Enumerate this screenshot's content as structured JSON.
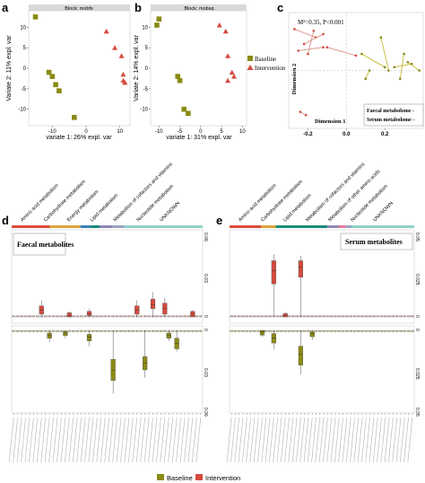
{
  "colors": {
    "baseline": "#8a8a14",
    "intervention": "#d64a3e",
    "mds_baseline_line": "#c7b93a",
    "mds_intervention_line": "#d88f82",
    "axis": "#555555",
    "band_amino": "#d94e3a",
    "band_carb": "#e0a23a",
    "band_energy": "#3d7fb5",
    "band_lipid": "#1b8c78",
    "band_cofactors": "#8b8ab8",
    "band_nucleotide": "#9aa4bd",
    "band_unknown": "#8fd2c9",
    "band_other_amino": "#e57aa0"
  },
  "panels": {
    "a": {
      "letter": "a",
      "block": "Block: mobfs",
      "xlabel": "variate 1: 26% expl. var",
      "ylabel": "Variate 2: 11% expl. var"
    },
    "b": {
      "letter": "b",
      "block": "Block: mobsq",
      "xlabel": "variate 1: 31% expl. var",
      "ylabel": "Variate 2: 14% expl. var"
    },
    "c": {
      "letter": "c",
      "stat": "M²=0.35, P<0.001",
      "xlabel": "Dimension 1",
      "ylabel": "Dimension 2",
      "legend_1": "Faecal metabolome -",
      "legend_2": "Serum metabolome -"
    },
    "d": {
      "letter": "d",
      "title": "Faecal metabolites"
    },
    "e": {
      "letter": "e",
      "title": "Serum metabolites"
    }
  },
  "legend_ab": {
    "baseline": "Baseline",
    "intervention": "Intervention"
  },
  "legend_bottom": {
    "baseline": "Baseline",
    "intervention": "Intervention"
  },
  "chart_data": [
    {
      "panel": "a",
      "type": "scatter",
      "title": "Block: mobfs",
      "xlabel": "variate 1: 26% expl. var",
      "ylabel": "Variate 2: 11% expl. var",
      "xlim": [
        -17,
        13
      ],
      "ylim": [
        -14,
        14
      ],
      "xticks": [
        -10,
        0,
        10
      ],
      "yticks": [
        -10,
        -5,
        0,
        5,
        10
      ],
      "series": [
        {
          "name": "Baseline",
          "points": [
            [
              -15,
              12.5
            ],
            [
              -11,
              -1
            ],
            [
              -10,
              -2
            ],
            [
              -9,
              -4
            ],
            [
              -8,
              -5.5
            ],
            [
              -3.5,
              -12
            ]
          ]
        },
        {
          "name": "Intervention",
          "points": [
            [
              6,
              9
            ],
            [
              8.5,
              5
            ],
            [
              10.5,
              3
            ],
            [
              11,
              -3
            ],
            [
              11.5,
              -3.5
            ],
            [
              11,
              -1.5
            ]
          ]
        }
      ]
    },
    {
      "panel": "b",
      "type": "scatter",
      "title": "Block: mobsq",
      "xlabel": "variate 1: 31% expl. var",
      "ylabel": "Variate 2: 14% expl. var",
      "xlim": [
        -12,
        11
      ],
      "ylim": [
        -14,
        14
      ],
      "xticks": [
        -10,
        -5,
        0,
        5,
        10
      ],
      "yticks": [
        -10,
        -5,
        0,
        5,
        10
      ],
      "series": [
        {
          "name": "Baseline",
          "points": [
            [
              -10.5,
              10.5
            ],
            [
              -10,
              12
            ],
            [
              -5.5,
              -2
            ],
            [
              -5,
              -3
            ],
            [
              -4,
              -10
            ],
            [
              -3,
              -11
            ]
          ]
        },
        {
          "name": "Intervention",
          "points": [
            [
              4.5,
              10.5
            ],
            [
              6,
              9
            ],
            [
              6.5,
              3
            ],
            [
              7.5,
              -1
            ],
            [
              8,
              -2
            ],
            [
              6.5,
              -3
            ]
          ]
        }
      ]
    },
    {
      "panel": "c",
      "type": "scatter",
      "xlabel": "Dimension 1",
      "ylabel": "Dimension 2",
      "xlim": [
        -0.3,
        0.4
      ],
      "ylim": [
        -0.35,
        0.35
      ],
      "xticks": [
        -0.2,
        0.0,
        0.2
      ],
      "series": [
        {
          "name": "Baseline",
          "segments": [
            [
              [
                0.08,
                0.1
              ],
              [
                0.2,
                0.02
              ]
            ],
            [
              [
                0.18,
                0.2
              ],
              [
                0.22,
                0.0
              ]
            ],
            [
              [
                0.3,
                0.1
              ],
              [
                0.28,
                -0.05
              ]
            ],
            [
              [
                0.32,
                0.05
              ],
              [
                0.38,
                0.0
              ]
            ],
            [
              [
                0.12,
                0.0
              ],
              [
                0.1,
                -0.05
              ]
            ],
            [
              [
                0.25,
                0.02
              ],
              [
                0.34,
                0.04
              ]
            ]
          ]
        },
        {
          "name": "Intervention",
          "segments": [
            [
              [
                -0.27,
                0.25
              ],
              [
                -0.16,
                0.2
              ]
            ],
            [
              [
                -0.22,
                0.16
              ],
              [
                -0.12,
                0.22
              ]
            ],
            [
              [
                -0.2,
                0.1
              ],
              [
                -0.17,
                0.24
              ]
            ],
            [
              [
                -0.25,
                0.12
              ],
              [
                -0.12,
                0.14
              ]
            ],
            [
              [
                -0.24,
                -0.25
              ],
              [
                -0.21,
                -0.27
              ]
            ],
            [
              [
                -0.1,
                0.14
              ],
              [
                0.05,
                0.09
              ]
            ]
          ]
        }
      ]
    },
    {
      "panel": "d",
      "type": "box",
      "title": "Faecal metabolites",
      "category_groups": [
        "Amino acid metabolism",
        "Carbohydrate metabolism",
        "Energy metabolism",
        "Lipid metabolism",
        "Metabolism of cofactors and vitamins",
        "Nucleotide metabolism",
        "UNKNOWN"
      ],
      "top_ylim": [
        0,
        0.06
      ],
      "top_yticks": [
        0,
        0.03,
        0.06
      ],
      "bottom_ylim": [
        0,
        0.06
      ],
      "bottom_yticks": [
        0,
        0.03,
        0.06
      ],
      "intervention_boxes": [
        {
          "index": 7,
          "q1": 0.002,
          "q3": 0.008,
          "median": 0.005,
          "whisker_hi": 0.012
        },
        {
          "index": 14,
          "q1": 0.0,
          "q3": 0.003,
          "median": 0.001,
          "whisker_hi": 0.004
        },
        {
          "index": 19,
          "q1": 0.001,
          "q3": 0.004,
          "median": 0.002,
          "whisker_hi": 0.006
        },
        {
          "index": 31,
          "q1": 0.002,
          "q3": 0.008,
          "median": 0.005,
          "whisker_hi": 0.012
        },
        {
          "index": 35,
          "q1": 0.006,
          "q3": 0.013,
          "median": 0.009,
          "whisker_hi": 0.018
        },
        {
          "index": 38,
          "q1": 0.002,
          "q3": 0.01,
          "median": 0.006,
          "whisker_hi": 0.014
        },
        {
          "index": 45,
          "q1": 0.0,
          "q3": 0.004,
          "median": 0.002,
          "whisker_hi": 0.005
        }
      ],
      "baseline_boxes": [
        {
          "index": 9,
          "q1": 0.002,
          "q3": 0.006,
          "median": 0.004,
          "whisker_hi": 0.009
        },
        {
          "index": 13,
          "q1": 0.001,
          "q3": 0.004,
          "median": 0.002,
          "whisker_hi": 0.006
        },
        {
          "index": 19,
          "q1": 0.003,
          "q3": 0.008,
          "median": 0.005,
          "whisker_hi": 0.012
        },
        {
          "index": 25,
          "q1": 0.022,
          "q3": 0.038,
          "median": 0.03,
          "whisker_hi": 0.048
        },
        {
          "index": 33,
          "q1": 0.02,
          "q3": 0.03,
          "median": 0.025,
          "whisker_hi": 0.036
        },
        {
          "index": 39,
          "q1": 0.002,
          "q3": 0.006,
          "median": 0.004,
          "whisker_hi": 0.008
        },
        {
          "index": 41,
          "q1": 0.006,
          "q3": 0.014,
          "median": 0.01,
          "whisker_hi": 0.016
        }
      ]
    },
    {
      "panel": "e",
      "type": "box",
      "title": "Serum metabolites",
      "category_groups": [
        "Amino acid metabolism",
        "Carbohydrate metabolism",
        "Lipid metabolism",
        "Metabolism of cofactors and vitamins",
        "Metabolism of other amino acids",
        "Nucleotide metabolism",
        "UNKNOWN"
      ],
      "top_ylim": [
        0,
        0.05
      ],
      "top_yticks": [
        0,
        0.025,
        0.05
      ],
      "bottom_ylim": [
        0,
        0.05
      ],
      "bottom_yticks": [
        0,
        0.025,
        0.05
      ],
      "intervention_boxes": [
        {
          "index": 11,
          "q1": 0.02,
          "q3": 0.034,
          "median": 0.028,
          "whisker_hi": 0.038
        },
        {
          "index": 18,
          "q1": 0.024,
          "q3": 0.034,
          "median": 0.03,
          "whisker_hi": 0.037
        },
        {
          "index": 14,
          "q1": 0.0,
          "q3": 0.002,
          "median": 0.001,
          "whisker_hi": 0.003
        }
      ],
      "baseline_boxes": [
        {
          "index": 11,
          "q1": 0.002,
          "q3": 0.008,
          "median": 0.005,
          "whisker_hi": 0.012
        },
        {
          "index": 18,
          "q1": 0.01,
          "q3": 0.022,
          "median": 0.015,
          "whisker_hi": 0.028
        },
        {
          "index": 21,
          "q1": 0.001,
          "q3": 0.004,
          "median": 0.002,
          "whisker_hi": 0.006
        },
        {
          "index": 8,
          "q1": 0.0,
          "q3": 0.003,
          "median": 0.001,
          "whisker_hi": 0.004
        }
      ]
    }
  ]
}
